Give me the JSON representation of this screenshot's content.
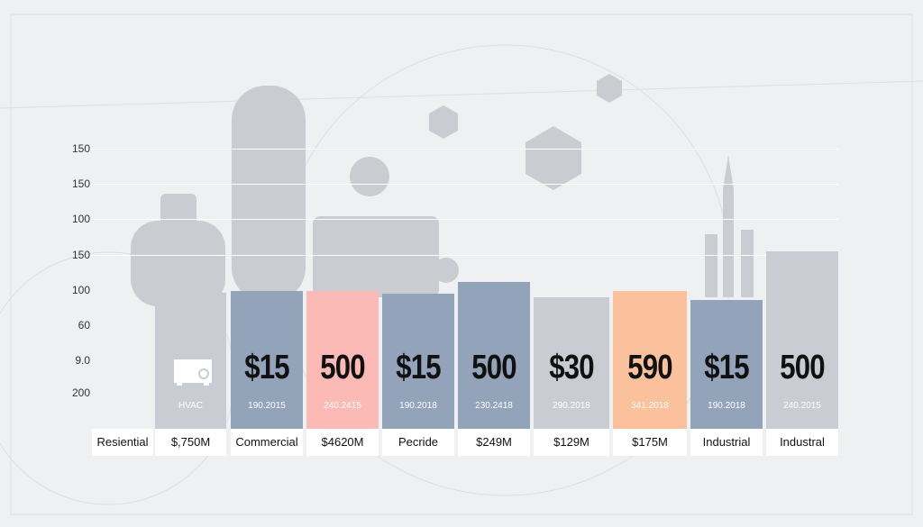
{
  "y_axis_labels": [
    "150",
    "150",
    "100",
    "150",
    "100",
    "60",
    "9.0",
    "200"
  ],
  "row_label": "Resiential",
  "columns": [
    {
      "sub": "HVAC",
      "footer": "$,750M"
    },
    {
      "big": "$15",
      "sub": "190.2015",
      "footer": "Commercial"
    },
    {
      "big": "500",
      "sub": "240.2415",
      "footer": "$4620M"
    },
    {
      "big": "$15",
      "sub": "190.2018",
      "footer": "Pecride"
    },
    {
      "big": "500",
      "sub": "230.2418",
      "footer": "$249M"
    },
    {
      "big": "$30",
      "sub": "290.2018",
      "footer": "$129M"
    },
    {
      "big": "590",
      "sub": "341.2018",
      "footer": "$175M"
    },
    {
      "big": "$15",
      "sub": "190.2018",
      "footer": "Industrial"
    },
    {
      "big": "500",
      "sub": "240.2015",
      "footer": "Industral"
    }
  ]
}
